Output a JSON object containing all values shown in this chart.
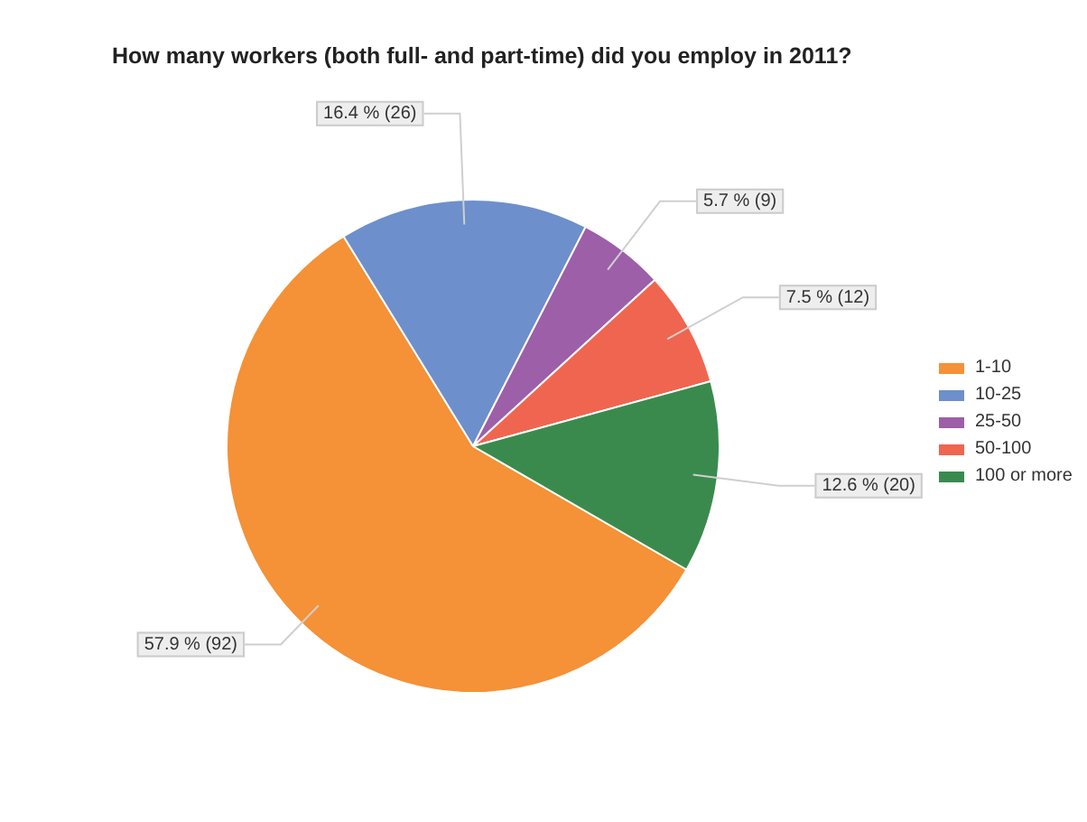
{
  "chart_data": {
    "type": "pie",
    "title": "How many workers (both full- and part-time) did you employ in 2011?",
    "categories": [
      "1-10",
      "10-25",
      "25-50",
      "50-100",
      "100 or more"
    ],
    "values": [
      92,
      26,
      9,
      12,
      20
    ],
    "value_labels": [
      "57.9 % (92)",
      "16.4 % (26)",
      "5.7 % (9)",
      "7.5 % (12)",
      "12.6 % (20)"
    ],
    "colors": [
      "#f59136",
      "#6d8fcb",
      "#9c5fa8",
      "#f0654f",
      "#3a8a4e"
    ],
    "legend": "right"
  }
}
